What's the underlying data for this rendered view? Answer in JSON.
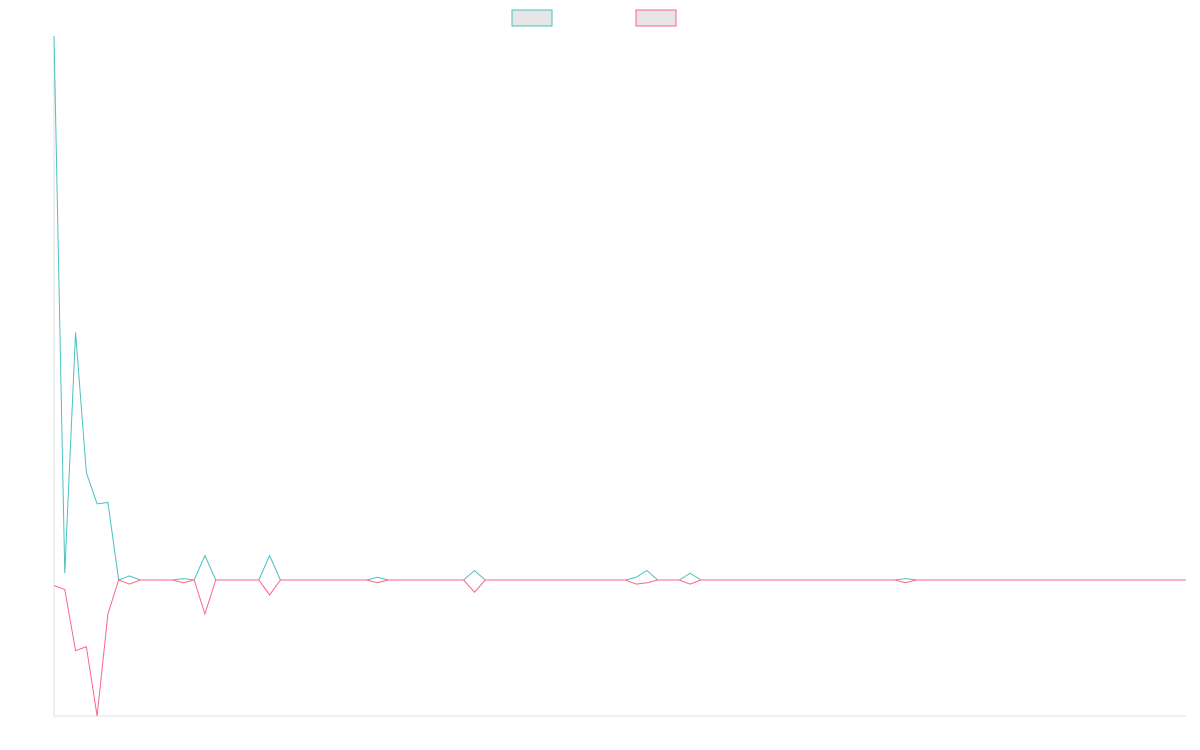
{
  "chart_data": {
    "type": "line",
    "title": "",
    "xlabel": "",
    "ylabel": "",
    "grid": false,
    "legend": "top-center",
    "x": [
      0,
      1,
      2,
      3,
      4,
      5,
      6,
      7,
      8,
      9,
      10,
      11,
      12,
      13,
      14,
      15,
      16,
      17,
      18,
      19,
      20,
      21,
      22,
      23,
      24,
      25,
      26,
      27,
      28,
      29,
      30,
      31,
      32,
      33,
      34,
      35,
      36,
      37,
      38,
      39,
      40,
      41,
      42,
      43,
      44,
      45,
      46,
      47,
      48,
      49,
      50,
      51,
      52,
      53,
      54,
      55,
      56,
      57,
      58,
      59,
      60,
      61,
      62,
      63,
      64,
      65,
      66,
      67,
      68,
      69,
      70,
      71,
      72,
      73,
      74,
      75,
      76,
      77,
      78,
      79,
      80,
      81,
      82,
      83,
      84,
      85,
      86,
      87,
      88,
      89,
      90,
      91,
      92,
      93,
      94,
      95,
      96,
      97,
      98,
      99,
      100,
      101,
      102,
      103,
      104,
      105
    ],
    "ylim": [
      -100,
      400
    ],
    "series": [
      {
        "color": "#4bc0c0",
        "values": [
          400,
          5,
          182,
          79,
          56,
          57,
          0,
          3,
          0,
          0,
          0,
          0,
          1,
          0,
          18,
          0,
          0,
          0,
          0,
          0,
          18,
          0,
          0,
          0,
          0,
          0,
          0,
          0,
          0,
          0,
          2,
          0,
          0,
          0,
          0,
          0,
          0,
          0,
          0,
          7,
          0,
          0,
          0,
          0,
          0,
          0,
          0,
          0,
          0,
          0,
          0,
          0,
          0,
          0,
          2,
          7,
          0,
          0,
          0,
          5,
          0,
          0,
          0,
          0,
          0,
          0,
          0,
          0,
          0,
          0,
          0,
          0,
          0,
          0,
          0,
          0,
          0,
          0,
          0,
          1,
          0,
          0,
          0,
          0,
          0,
          0,
          0,
          0,
          0,
          0,
          0,
          0,
          0,
          0,
          0,
          0,
          0,
          0,
          0,
          0,
          0,
          0,
          0,
          0,
          0,
          0
        ]
      },
      {
        "color": "#ff6384",
        "values": [
          -4,
          -7,
          -52,
          -49,
          -100,
          -25,
          0,
          -3,
          0,
          0,
          0,
          0,
          -2,
          0,
          -25,
          0,
          0,
          0,
          0,
          0,
          -11,
          0,
          0,
          0,
          0,
          0,
          0,
          0,
          0,
          0,
          -2,
          0,
          0,
          0,
          0,
          0,
          0,
          0,
          0,
          -9,
          0,
          0,
          0,
          0,
          0,
          0,
          0,
          0,
          0,
          0,
          0,
          0,
          0,
          0,
          -3,
          -2,
          0,
          0,
          0,
          -3,
          0,
          0,
          0,
          0,
          0,
          0,
          0,
          0,
          0,
          0,
          0,
          0,
          0,
          0,
          0,
          0,
          0,
          0,
          0,
          -2,
          0,
          0,
          0,
          0,
          0,
          0,
          0,
          0,
          0,
          0,
          0,
          0,
          0,
          0,
          0,
          0,
          0,
          0,
          0,
          0,
          0,
          0,
          0,
          0,
          0,
          0
        ]
      }
    ]
  }
}
